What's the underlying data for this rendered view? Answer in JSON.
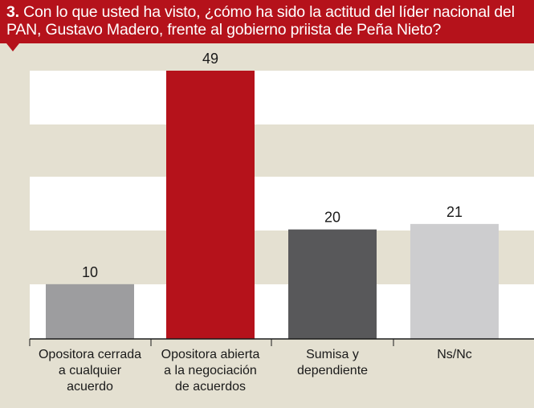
{
  "header": {
    "number": "3.",
    "question": "Con lo que usted ha visto, ¿cómo ha sido la actitud del líder nacional del PAN, Gustavo Madero, frente al gobierno priista de Peña Nieto?"
  },
  "colors": {
    "background": "#e4e0d1",
    "header": "#b5121b",
    "band": "#ffffff"
  },
  "chart_data": {
    "type": "bar",
    "title": "3. Con lo que usted ha visto, ¿cómo ha sido la actitud del líder nacional del PAN, Gustavo Madero, frente al gobierno priista de Peña Nieto?",
    "categories": [
      [
        "Opositora cerrada",
        "a cualquier",
        "acuerdo"
      ],
      [
        "Opositora abierta",
        "a la negociación",
        "de acuerdos"
      ],
      [
        "Sumisa y",
        "dependiente"
      ],
      [
        "Ns/Nc"
      ]
    ],
    "values": [
      10,
      49,
      20,
      21
    ],
    "data_labels": [
      "10",
      "49",
      "20",
      "21"
    ],
    "bar_colors": [
      "#9d9d9f",
      "#b5121b",
      "#58585a",
      "#cdcdcf"
    ],
    "ylim": [
      0,
      50
    ],
    "grid": "alternating horizontal bands",
    "xlabel": "",
    "ylabel": ""
  }
}
